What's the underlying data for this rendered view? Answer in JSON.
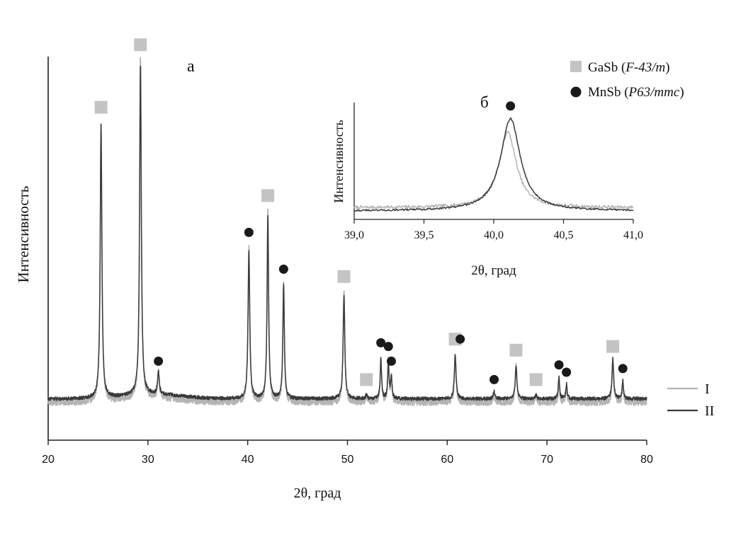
{
  "chart_data": [
    {
      "type": "line",
      "panel_label": "а",
      "xlabel": "2θ, град",
      "ylabel": "Интенсивность",
      "xlim": [
        20,
        80
      ],
      "ylim": [
        0,
        1
      ],
      "xticks": [
        20,
        30,
        40,
        50,
        60,
        70,
        80
      ],
      "x_tick_labels": [
        "20",
        "30",
        "40",
        "50",
        "60",
        "70",
        "80"
      ],
      "y_tick_labels_shown": false,
      "grid": false,
      "baseline": {
        "I": 0.06,
        "II": 0.07
      },
      "series": [
        {
          "name": "I",
          "color": "#b4b4b4",
          "peaks": [
            {
              "x": 25.3,
              "y": 0.76,
              "w": 0.1
            },
            {
              "x": 29.25,
              "y": 0.93,
              "w": 0.1
            },
            {
              "x": 31.05,
              "y": 0.07,
              "w": 0.1
            },
            {
              "x": 40.12,
              "y": 0.42,
              "w": 0.1
            },
            {
              "x": 42.02,
              "y": 0.52,
              "w": 0.09
            },
            {
              "x": 43.6,
              "y": 0.32,
              "w": 0.09
            },
            {
              "x": 49.65,
              "y": 0.3,
              "w": 0.1
            },
            {
              "x": 51.9,
              "y": 0.02,
              "w": 0.1
            },
            {
              "x": 53.35,
              "y": 0.12,
              "w": 0.08
            },
            {
              "x": 54.1,
              "y": 0.11,
              "w": 0.08
            },
            {
              "x": 54.4,
              "y": 0.07,
              "w": 0.08
            },
            {
              "x": 60.8,
              "y": 0.13,
              "w": 0.1
            },
            {
              "x": 64.7,
              "y": 0.02,
              "w": 0.1
            },
            {
              "x": 66.9,
              "y": 0.1,
              "w": 0.1
            },
            {
              "x": 68.9,
              "y": 0.02,
              "w": 0.1
            },
            {
              "x": 71.2,
              "y": 0.06,
              "w": 0.08
            },
            {
              "x": 71.95,
              "y": 0.04,
              "w": 0.08
            },
            {
              "x": 76.6,
              "y": 0.11,
              "w": 0.1
            },
            {
              "x": 77.6,
              "y": 0.05,
              "w": 0.08
            }
          ]
        },
        {
          "name": "II",
          "color": "#3a3a3a",
          "peaks": [
            {
              "x": 25.3,
              "y": 0.74,
              "w": 0.1
            },
            {
              "x": 29.25,
              "y": 0.9,
              "w": 0.1
            },
            {
              "x": 31.05,
              "y": 0.06,
              "w": 0.1
            },
            {
              "x": 40.12,
              "y": 0.4,
              "w": 0.1
            },
            {
              "x": 42.02,
              "y": 0.5,
              "w": 0.09
            },
            {
              "x": 43.6,
              "y": 0.31,
              "w": 0.09
            },
            {
              "x": 49.65,
              "y": 0.28,
              "w": 0.1
            },
            {
              "x": 51.9,
              "y": 0.01,
              "w": 0.1
            },
            {
              "x": 53.35,
              "y": 0.11,
              "w": 0.08
            },
            {
              "x": 54.1,
              "y": 0.1,
              "w": 0.08
            },
            {
              "x": 54.4,
              "y": 0.06,
              "w": 0.08
            },
            {
              "x": 60.8,
              "y": 0.12,
              "w": 0.1
            },
            {
              "x": 64.7,
              "y": 0.02,
              "w": 0.1
            },
            {
              "x": 66.9,
              "y": 0.09,
              "w": 0.1
            },
            {
              "x": 68.9,
              "y": 0.01,
              "w": 0.1
            },
            {
              "x": 71.2,
              "y": 0.06,
              "w": 0.08
            },
            {
              "x": 71.95,
              "y": 0.04,
              "w": 0.08
            },
            {
              "x": 76.6,
              "y": 0.11,
              "w": 0.1
            },
            {
              "x": 77.6,
              "y": 0.05,
              "w": 0.08
            }
          ]
        }
      ],
      "phase_markers": [
        {
          "phase": "GaSb",
          "x": 25.3
        },
        {
          "phase": "GaSb",
          "x": 29.25
        },
        {
          "phase": "MnSb",
          "x": 31.05
        },
        {
          "phase": "MnSb",
          "x": 40.12
        },
        {
          "phase": "GaSb",
          "x": 42.02
        },
        {
          "phase": "MnSb",
          "x": 43.6
        },
        {
          "phase": "GaSb",
          "x": 49.65
        },
        {
          "phase": "GaSb",
          "x": 51.9
        },
        {
          "phase": "MnSb",
          "x": 53.35
        },
        {
          "phase": "MnSb",
          "x": 54.1
        },
        {
          "phase": "MnSb",
          "x": 54.4
        },
        {
          "phase": "GaSb",
          "x": 60.8
        },
        {
          "phase": "MnSb",
          "x": 61.3
        },
        {
          "phase": "MnSb",
          "x": 64.7
        },
        {
          "phase": "GaSb",
          "x": 66.9
        },
        {
          "phase": "GaSb",
          "x": 68.9
        },
        {
          "phase": "MnSb",
          "x": 71.2
        },
        {
          "phase": "MnSb",
          "x": 71.95
        },
        {
          "phase": "GaSb",
          "x": 76.6
        },
        {
          "phase": "MnSb",
          "x": 77.6
        }
      ],
      "legend": {
        "phases": [
          {
            "key": "GaSb",
            "label": "GaSb",
            "group": "F-43/m",
            "marker": "square",
            "color": "#c4c4c4"
          },
          {
            "key": "MnSb",
            "label": "MnSb",
            "group": "P63/mmc",
            "marker": "circle",
            "color": "#1a1a1a"
          }
        ],
        "series": [
          {
            "label": "I",
            "color": "#b4b4b4"
          },
          {
            "label": "II",
            "color": "#3a3a3a"
          }
        ]
      }
    },
    {
      "type": "line",
      "panel_label": "б",
      "xlabel": "2θ, град",
      "ylabel": "Интенсивность",
      "xlim": [
        39.0,
        41.0
      ],
      "ylim": [
        0,
        1
      ],
      "xticks": [
        39.0,
        39.5,
        40.0,
        40.5,
        41.0
      ],
      "x_tick_labels": [
        "39,0",
        "39,5",
        "40,0",
        "40,5",
        "41,0"
      ],
      "y_tick_labels_shown": false,
      "grid": false,
      "series": [
        {
          "name": "I",
          "color": "#b4b4b4",
          "peak_x": 40.1,
          "peak_y": 0.72,
          "baseline": 0.03
        },
        {
          "name": "II",
          "color": "#3a3a3a",
          "peak_x": 40.12,
          "peak_y": 0.88,
          "baseline": 0.0
        }
      ],
      "phase_markers": [
        {
          "phase": "MnSb",
          "x": 40.12
        }
      ]
    }
  ]
}
